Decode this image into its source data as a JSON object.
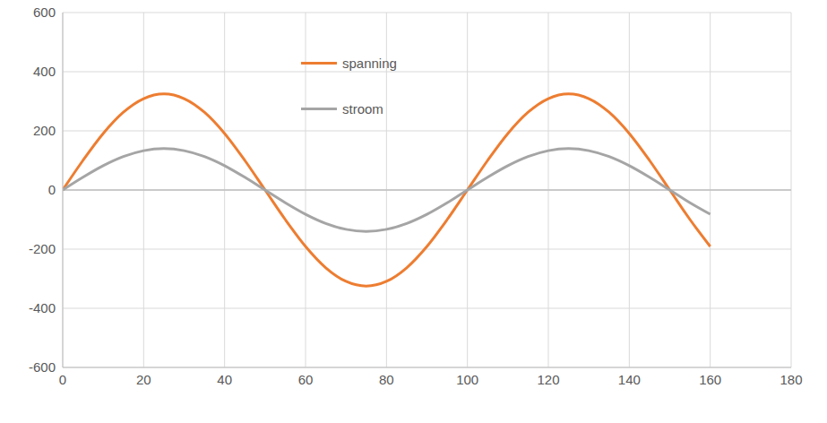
{
  "chart_data": {
    "type": "line",
    "x": [
      0,
      5,
      10,
      15,
      20,
      25,
      30,
      35,
      40,
      45,
      50,
      55,
      60,
      65,
      70,
      75,
      80,
      85,
      90,
      95,
      100,
      105,
      110,
      115,
      120,
      125,
      130,
      135,
      140,
      145,
      150,
      155,
      160
    ],
    "series": [
      {
        "name": "spanning",
        "color": "#ed7d31",
        "values": [
          0,
          100,
          191,
          263,
          309,
          325,
          309,
          263,
          191,
          100,
          0,
          -100,
          -191,
          -263,
          -309,
          -325,
          -309,
          -263,
          -191,
          -100,
          0,
          100,
          191,
          263,
          309,
          325,
          309,
          263,
          191,
          100,
          0,
          -100,
          -191
        ]
      },
      {
        "name": "stroom",
        "color": "#a5a5a5",
        "values": [
          0,
          43,
          82,
          113,
          133,
          140,
          133,
          113,
          82,
          43,
          0,
          -43,
          -82,
          -113,
          -133,
          -140,
          -133,
          -113,
          -82,
          -43,
          0,
          43,
          82,
          113,
          133,
          140,
          133,
          113,
          82,
          43,
          0,
          -43,
          -82
        ]
      }
    ],
    "xlim": [
      0,
      180
    ],
    "ylim": [
      -600,
      600
    ],
    "xticks": [
      0,
      20,
      40,
      60,
      80,
      100,
      120,
      140,
      160,
      180
    ],
    "yticks": [
      -600,
      -400,
      -200,
      0,
      200,
      400,
      600
    ],
    "grid": true,
    "legend": "top"
  }
}
